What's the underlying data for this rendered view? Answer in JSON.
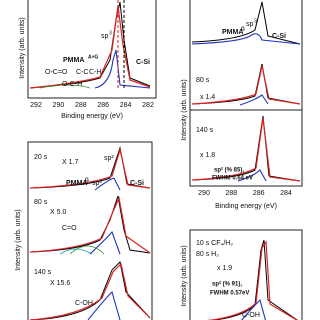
{
  "panels": [
    {
      "labels": [
        "PMMA",
        "sp",
        "O-C=O",
        "C-C",
        "C-H",
        "O-C-H",
        "C-Si"
      ],
      "superscripts": [
        "A+G",
        "3"
      ],
      "xticks": [
        "292",
        "290",
        "288",
        "286",
        "284",
        "282"
      ],
      "xlabel": "Binding energy (eV)",
      "ylabel": "Intensity (arb. units)"
    },
    {
      "labels": [
        "PMMA",
        "sp",
        "C-Si",
        "80 s",
        "x 1.4",
        "140 s",
        "x 1.8",
        "sp² (% 85),",
        "FWHM 0.64 eV"
      ],
      "superscripts": [
        "G",
        "3"
      ],
      "xticks": [
        "290",
        "288",
        "286",
        "284"
      ],
      "xlabel": "Binding energy (eV)",
      "ylabel": "Intensity (arb. units)"
    },
    {
      "labels": [
        "20 s",
        "X 1.7",
        "sp²",
        "PMMA",
        "sp³",
        "C-Si",
        "80 s",
        "X 5.0",
        "C=O",
        "140 s",
        "X 15.6",
        "C-OH"
      ],
      "superscripts": [
        "G"
      ],
      "ylabel": "Intensity (arb. units)"
    },
    {
      "labels": [
        "10 s CF₄/H₂",
        "80 s  H₂",
        "x 1.9",
        "sp² (% 91),",
        "FWHM 0.57eV",
        "C-OH"
      ],
      "ylabel": "Intensity (arb. units)"
    }
  ]
}
